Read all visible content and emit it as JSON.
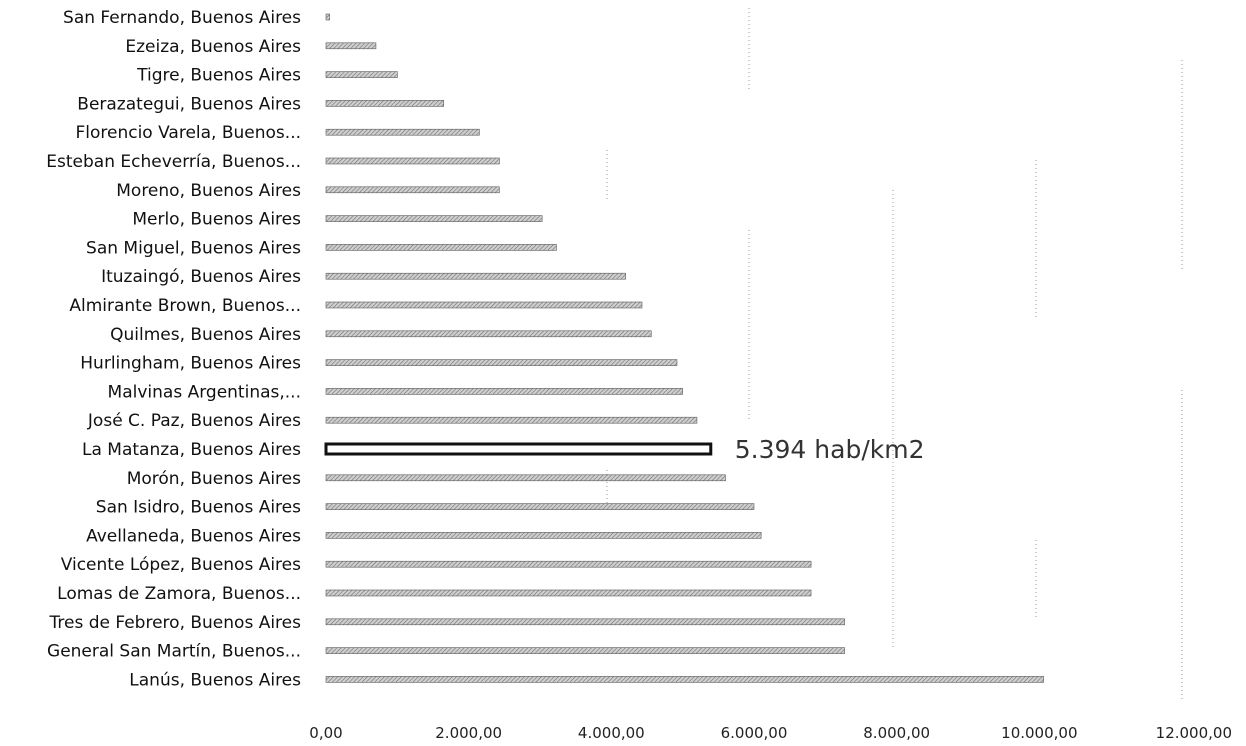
{
  "chart_data": {
    "type": "bar",
    "orientation": "horizontal",
    "categories": [
      "San Fernando, Buenos Aires",
      "Ezeiza, Buenos Aires",
      "Tigre, Buenos Aires",
      "Berazategui, Buenos Aires",
      "Florencio Varela, Buenos...",
      "Esteban Echeverría, Buenos...",
      "Moreno, Buenos Aires",
      "Merlo, Buenos Aires",
      "San Miguel, Buenos Aires",
      "Ituzaingó, Buenos Aires",
      "Almirante Brown, Buenos...",
      "Quilmes, Buenos Aires",
      "Hurlingham, Buenos Aires",
      "Malvinas Argentinas,...",
      "José C. Paz, Buenos Aires",
      "La Matanza, Buenos Aires",
      "Morón, Buenos Aires",
      "San Isidro, Buenos Aires",
      "Avellaneda, Buenos Aires",
      "Vicente López, Buenos Aires",
      "Lomas de Zamora, Buenos...",
      "Tres de Febrero, Buenos Aires",
      "General San Martín, Buenos...",
      "Lanús, Buenos Aires"
    ],
    "values": [
      50,
      700,
      1000,
      1650,
      2150,
      2430,
      2430,
      3030,
      3230,
      4200,
      4430,
      4560,
      4920,
      5000,
      5200,
      5394,
      5600,
      6000,
      6100,
      6800,
      6800,
      7270,
      7270,
      10060
    ],
    "xlim": [
      0,
      12000
    ],
    "xticks": [
      "0,00",
      "2.000,00",
      "4.000,00",
      "6.000,00",
      "8.000,00",
      "10.000,00",
      "12.000,00"
    ],
    "highlight_category": "La Matanza, Buenos Aires",
    "annotation": "5.394 hab/km2",
    "bar_color": "#b0b0b0",
    "highlight_outline_color": "#111111",
    "grid": false
  }
}
